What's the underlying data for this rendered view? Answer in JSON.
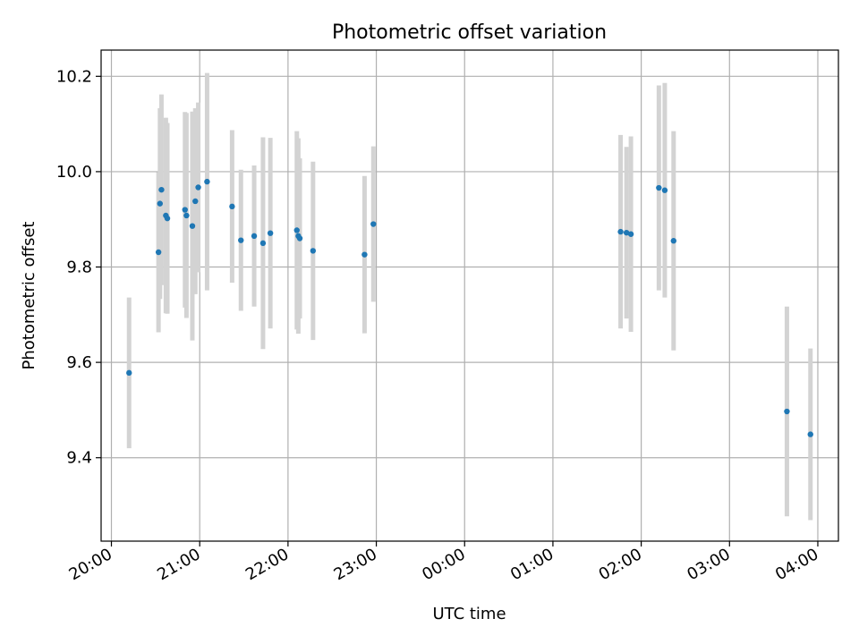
{
  "chart_data": {
    "type": "scatter",
    "title": "Photometric offset variation",
    "xlabel": "UTC time",
    "ylabel": "Photometric offset",
    "grid": true,
    "x_format": "HH:MM",
    "x_tick_labels": [
      "20:00",
      "21:00",
      "22:00",
      "23:00",
      "00:00",
      "01:00",
      "02:00",
      "03:00",
      "04:00"
    ],
    "x_tick_times": [
      "20:00",
      "21:00",
      "22:00",
      "23:00",
      "00:00",
      "01:00",
      "02:00",
      "03:00",
      "04:00"
    ],
    "xlim": [
      "19:53",
      "04:14"
    ],
    "y_tick_labels": [
      "9.4",
      "9.6",
      "9.8",
      "10.0",
      "10.2"
    ],
    "y_ticks": [
      9.4,
      9.6,
      9.8,
      10.0,
      10.2
    ],
    "ylim": [
      9.225,
      10.255
    ],
    "colors": {
      "points": "#1f77b4",
      "errorbars": "#d3d3d3",
      "grid": "#b0b0b0"
    },
    "points": [
      {
        "x": "20:12",
        "y": 9.578,
        "err": 0.158
      },
      {
        "x": "20:32",
        "y": 9.831,
        "err": 0.168
      },
      {
        "x": "20:33",
        "y": 9.933,
        "err": 0.2
      },
      {
        "x": "20:34",
        "y": 9.962,
        "err": 0.2
      },
      {
        "x": "20:37",
        "y": 9.908,
        "err": 0.205
      },
      {
        "x": "20:38",
        "y": 9.902,
        "err": 0.2
      },
      {
        "x": "20:50",
        "y": 9.92,
        "err": 0.205
      },
      {
        "x": "20:51",
        "y": 9.908,
        "err": 0.215
      },
      {
        "x": "20:55",
        "y": 9.886,
        "err": 0.24
      },
      {
        "x": "20:57",
        "y": 9.938,
        "err": 0.195
      },
      {
        "x": "20:59",
        "y": 9.967,
        "err": 0.178
      },
      {
        "x": "21:05",
        "y": 9.979,
        "err": 0.228
      },
      {
        "x": "21:22",
        "y": 9.927,
        "err": 0.16
      },
      {
        "x": "21:28",
        "y": 9.856,
        "err": 0.148
      },
      {
        "x": "21:37",
        "y": 9.865,
        "err": 0.148
      },
      {
        "x": "21:43",
        "y": 9.85,
        "err": 0.222
      },
      {
        "x": "21:48",
        "y": 9.871,
        "err": 0.2
      },
      {
        "x": "22:06",
        "y": 9.877,
        "err": 0.208
      },
      {
        "x": "22:07",
        "y": 9.865,
        "err": 0.205
      },
      {
        "x": "22:08",
        "y": 9.86,
        "err": 0.168
      },
      {
        "x": "22:17",
        "y": 9.834,
        "err": 0.187
      },
      {
        "x": "22:52",
        "y": 9.826,
        "err": 0.165
      },
      {
        "x": "22:58",
        "y": 9.89,
        "err": 0.163
      },
      {
        "x": "01:46",
        "y": 9.874,
        "err": 0.203
      },
      {
        "x": "01:50",
        "y": 9.872,
        "err": 0.18
      },
      {
        "x": "01:53",
        "y": 9.869,
        "err": 0.205
      },
      {
        "x": "02:12",
        "y": 9.966,
        "err": 0.215
      },
      {
        "x": "02:16",
        "y": 9.961,
        "err": 0.225
      },
      {
        "x": "02:22",
        "y": 9.855,
        "err": 0.23
      },
      {
        "x": "03:39",
        "y": 9.497,
        "err": 0.22
      },
      {
        "x": "03:55",
        "y": 9.449,
        "err": 0.18
      }
    ]
  }
}
